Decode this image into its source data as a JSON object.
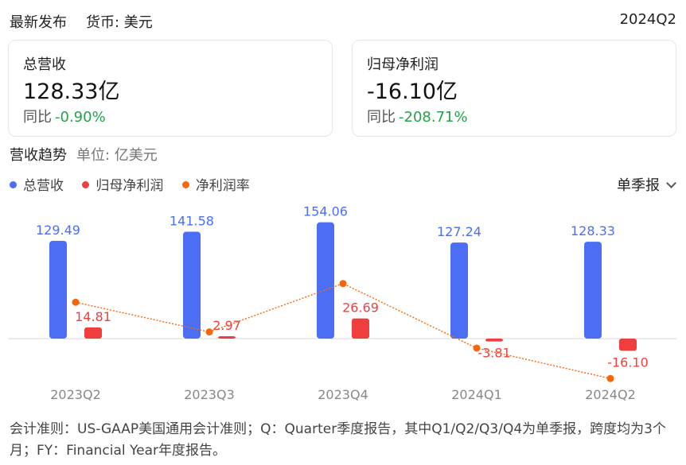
{
  "header": {
    "title": "最新发布",
    "currency": "货币: 美元",
    "period": "2024Q2"
  },
  "cards": [
    {
      "label": "总营收",
      "value": "128.33亿",
      "yoy_label": "同比",
      "yoy_value": "-0.90%"
    },
    {
      "label": "归母净利润",
      "value": "-16.10亿",
      "yoy_label": "同比",
      "yoy_value": "-208.71%"
    }
  ],
  "trend": {
    "title": "营收趋势",
    "unit": "单位: 亿美元",
    "period_select": "单季报"
  },
  "colors": {
    "revenue": "#4c6ef5",
    "net_profit": "#f03e3e",
    "margin": "#f76707",
    "positive": "#22a34a"
  },
  "chart_data": {
    "type": "bar",
    "categories": [
      "2023Q2",
      "2023Q3",
      "2023Q4",
      "2024Q1",
      "2024Q2"
    ],
    "series": [
      {
        "name": "总营收",
        "type": "bar",
        "values": [
          129.49,
          141.58,
          154.06,
          127.24,
          128.33
        ]
      },
      {
        "name": "归母净利润",
        "type": "bar",
        "values": [
          14.81,
          2.97,
          26.69,
          -3.81,
          -16.1
        ]
      },
      {
        "name": "净利润率",
        "type": "line",
        "values": [
          11.44,
          2.1,
          17.32,
          -2.99,
          -12.55
        ]
      }
    ],
    "legend_position": "top-left",
    "grid": false
  },
  "footnote": "会计准则：US-GAAP美国通用会计准则；Q：Quarter季度报告，其中Q1/Q2/Q3/Q4为单季报，跨度均为3个月；FY：Financial Year年度报告。"
}
